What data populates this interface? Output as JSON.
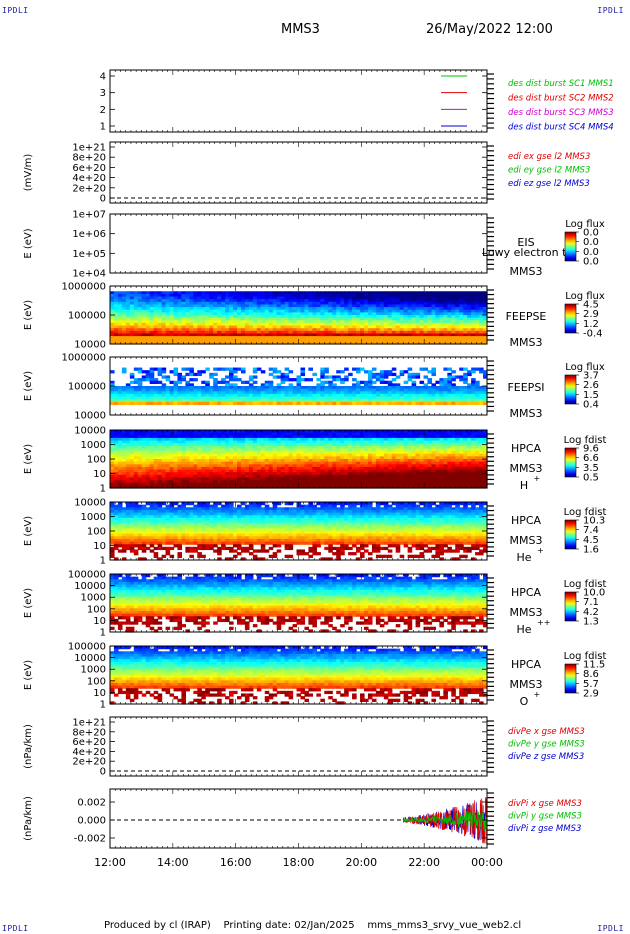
{
  "corners": {
    "tl": "IPDLI",
    "tr": "IPDLI",
    "bl": "IPDLI",
    "br": "IPDLI"
  },
  "header": {
    "spacecraft": "MMS3",
    "datetime": "26/May/2022 12:00"
  },
  "footer": {
    "produced_by": "Produced by cl (IRAP)",
    "printing_date": "Printing date: 02/Jan/2025",
    "filename": "mms_mms3_srvy_vue_web2.cl"
  },
  "x_axis": {
    "ticks": [
      "12:00",
      "14:00",
      "16:00",
      "18:00",
      "20:00",
      "22:00",
      "00:00"
    ]
  },
  "colors": {
    "red": "#e00000",
    "green": "#00c000",
    "blue": "#0000d0",
    "magenta": "#d000d0"
  },
  "chart_data": [
    {
      "type": "line",
      "id": "burst",
      "y_ticks": [
        "4",
        "3",
        "2",
        "1"
      ],
      "series": [
        {
          "name": "des dist burst SC1 MMS1",
          "color": "#00c000"
        },
        {
          "name": "des dist burst SC2 MMS2",
          "color": "#e00000"
        },
        {
          "name": "des dist burst SC3 MMS3",
          "color": "#d000d0"
        },
        {
          "name": "des dist burst SC4 MMS4",
          "color": "#0000d0"
        }
      ],
      "legend_colors": [
        "#0000d0",
        "#d000d0",
        "#e00000",
        "#00c000"
      ]
    },
    {
      "type": "line",
      "id": "edi",
      "ylabel": "(mV/m)",
      "y_ticks": [
        "1e+21",
        "8e+20",
        "6e+20",
        "4e+20",
        "2e+20",
        "0"
      ],
      "ylim": [
        0,
        1e+21
      ],
      "series": [
        {
          "name": "edi ex gse l2 MMS3",
          "color": "#e00000"
        },
        {
          "name": "edi ey gse l2 MMS3",
          "color": "#00c000"
        },
        {
          "name": "edi ez gse l2 MMS3",
          "color": "#0000d0"
        }
      ]
    },
    {
      "type": "heatmap",
      "id": "eis",
      "ylabel": "E (eV)",
      "y_ticks": [
        "1e+07",
        "1e+06",
        "1e+05",
        "1e+04"
      ],
      "instrument": "EIS",
      "sc": "MMS3",
      "overlay": "Lowy electron to",
      "cbar_title": "Log flux",
      "cbar_ticks": [
        "0.0",
        "0.0",
        "0.0",
        "0.0"
      ]
    },
    {
      "type": "heatmap",
      "id": "feepse",
      "ylabel": "E (eV)",
      "y_ticks": [
        "1000000",
        "100000",
        "10000"
      ],
      "instrument": "FEEPSE",
      "sc": "MMS3",
      "cbar_title": "Log flux",
      "cbar_ticks": [
        "4.5",
        "2.9",
        "1.2",
        "-0.4"
      ]
    },
    {
      "type": "heatmap",
      "id": "feepsi",
      "ylabel": "E (eV)",
      "y_ticks": [
        "1000000",
        "100000",
        "10000"
      ],
      "instrument": "FEEPSI",
      "sc": "MMS3",
      "cbar_title": "Log flux",
      "cbar_ticks": [
        "3.7",
        "2.6",
        "1.5",
        "0.4"
      ]
    },
    {
      "type": "heatmap",
      "id": "hpca_h",
      "ylabel": "E (eV)",
      "y_ticks": [
        "10000",
        "1000",
        "100",
        "10",
        "1"
      ],
      "instrument": "HPCA",
      "sc": "MMS3",
      "species": "H",
      "charge": "+",
      "cbar_title": "Log fdist",
      "cbar_ticks": [
        "9.6",
        "6.6",
        "3.5",
        "0.5"
      ]
    },
    {
      "type": "heatmap",
      "id": "hpca_he",
      "ylabel": "E (eV)",
      "y_ticks": [
        "10000",
        "1000",
        "100",
        "10",
        "1"
      ],
      "instrument": "HPCA",
      "sc": "MMS3",
      "species": "He",
      "charge": "+",
      "cbar_title": "Log fdist",
      "cbar_ticks": [
        "10.3",
        "7.4",
        "4.5",
        "1.6"
      ]
    },
    {
      "type": "heatmap",
      "id": "hpca_hepp",
      "ylabel": "E (eV)",
      "y_ticks": [
        "100000",
        "10000",
        "1000",
        "100",
        "10",
        "1"
      ],
      "instrument": "HPCA",
      "sc": "MMS3",
      "species": "He",
      "charge": "++",
      "cbar_title": "Log fdist",
      "cbar_ticks": [
        "10.0",
        "7.1",
        "4.2",
        "1.3"
      ]
    },
    {
      "type": "heatmap",
      "id": "hpca_o",
      "ylabel": "E (eV)",
      "y_ticks": [
        "100000",
        "10000",
        "1000",
        "100",
        "10",
        "1"
      ],
      "instrument": "HPCA",
      "sc": "MMS3",
      "species": "O",
      "charge": "+",
      "cbar_title": "Log fdist",
      "cbar_ticks": [
        "11.5",
        "8.6",
        "5.7",
        "2.9"
      ]
    },
    {
      "type": "line",
      "id": "divpe",
      "ylabel": "(nPa/km)",
      "y_ticks": [
        "1e+21",
        "8e+20",
        "6e+20",
        "4e+20",
        "2e+20",
        "0"
      ],
      "ylim": [
        0,
        1e+21
      ],
      "series": [
        {
          "name": "divPe x gse MMS3",
          "color": "#e00000"
        },
        {
          "name": "divPe y gse MMS3",
          "color": "#00c000"
        },
        {
          "name": "divPe z gse MMS3",
          "color": "#0000d0"
        }
      ]
    },
    {
      "type": "line",
      "id": "divpi",
      "ylabel": "(nPa/km)",
      "y_ticks": [
        "0.002",
        "0.000",
        "-0.002"
      ],
      "ylim": [
        -0.003,
        0.003
      ],
      "data_start": "21:20",
      "data_end": "00:00",
      "amplitude_max": 0.0028,
      "series": [
        {
          "name": "divPi x gse MMS3",
          "color": "#e00000"
        },
        {
          "name": "divPi y gse MMS3",
          "color": "#00c000"
        },
        {
          "name": "divPi z gse MMS3",
          "color": "#0000d0"
        }
      ]
    }
  ]
}
